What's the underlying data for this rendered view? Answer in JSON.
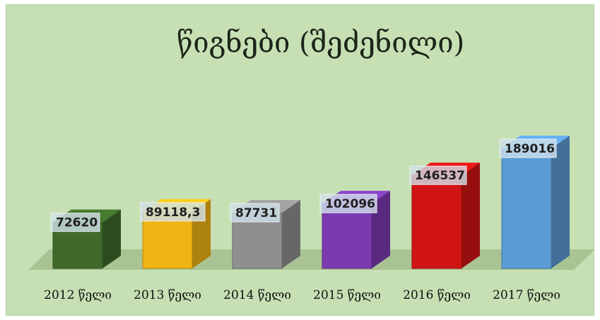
{
  "chart_data": {
    "type": "bar",
    "title": "წიგნები (შეძენილი)",
    "categories": [
      "2012 წელი",
      "2013 წელი",
      "2014 წელი",
      "2015 წელი",
      "2016 წელი",
      "2017 წელი"
    ],
    "values": [
      72620,
      89118.3,
      87731,
      102096,
      146537,
      189016
    ],
    "value_labels": [
      "72620",
      "89118,3",
      "87731",
      "102096",
      "146537",
      "189016"
    ],
    "colors": [
      "#3f6a2a",
      "#f0b415",
      "#8f8f8f",
      "#7b3bb0",
      "#d01414",
      "#5b9bd5"
    ],
    "xlabel": "",
    "ylabel": "",
    "grid": false,
    "legend": "none"
  }
}
